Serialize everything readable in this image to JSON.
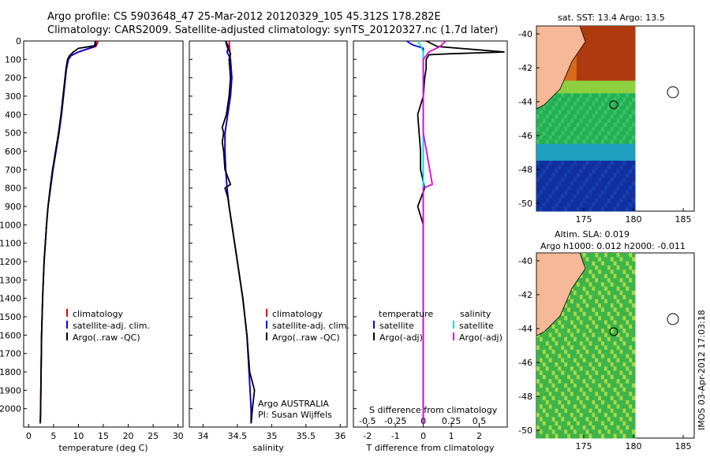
{
  "header": {
    "line1": "Argo profile: CS 5903648_47 25-Mar-2012 20120329_105 45.312S 178.282E",
    "line2": "Climatology: CARS2009. Satellite-adjusted climatology: synTS_20120327.nc (1.7d later)"
  },
  "colors": {
    "climatology": "#e00000",
    "satellite": "#0000e0",
    "argo": "#000000",
    "sat_sal": "#00e0e0",
    "argo_sal": "#e000e0"
  },
  "depth_ticks": [
    "0",
    "100",
    "200",
    "300",
    "400",
    "500",
    "600",
    "700",
    "800",
    "900",
    "1000",
    "1100",
    "1200",
    "1300",
    "1400",
    "1500",
    "1600",
    "1700",
    "1800",
    "1900",
    "2000"
  ],
  "legend_left": [
    "climatology",
    "satellite-adj. clim.",
    "Argo(..raw -QC)"
  ],
  "legend_diff": {
    "temp_title": "temperature",
    "sal_title": "salinity",
    "temp_items": [
      "satellite",
      "Argo(-adj)"
    ],
    "sal_items": [
      "satellite",
      "Argo(-adj)"
    ]
  },
  "panel_text": {
    "credit1": "Argo AUSTRALIA",
    "credit2": "PI: Susan Wijffels",
    "s_diff_label": "S difference from climatology"
  },
  "maps": {
    "sst_title": "sat. SST: 13.4 Argo: 13.5",
    "sla_title1": "Altim. SLA: 0.019",
    "sla_title2": "Argo h1000: 0.012 h2000: -0.011",
    "lat_ticks": [
      "-40",
      "-42",
      "-44",
      "-46",
      "-48",
      "-50"
    ],
    "lon_ticks": [
      "175",
      "180",
      "185"
    ]
  },
  "footer": "IMOS 03-Apr-2012 17:03:18",
  "chart_data": [
    {
      "type": "line",
      "title": "",
      "xlabel": "temperature (deg C)",
      "ylabel": "",
      "xlim": [
        -1,
        31
      ],
      "ylim": [
        2100,
        0
      ],
      "xticks": [
        "0",
        "5",
        "10",
        "15",
        "20",
        "25",
        "30"
      ],
      "series": [
        {
          "name": "climatology",
          "depth": [
            0,
            30,
            60,
            80,
            100,
            150,
            200,
            300,
            400,
            500,
            600,
            700,
            800,
            900,
            1000,
            1200,
            1400,
            1600,
            1800,
            2000,
            2080
          ],
          "values": [
            14,
            13.5,
            10,
            8.5,
            8,
            7.6,
            7.4,
            7.0,
            6.6,
            6.1,
            5.5,
            4.9,
            4.4,
            3.9,
            3.6,
            3.1,
            2.8,
            2.6,
            2.5,
            2.4,
            2.35
          ]
        },
        {
          "name": "satellite-adj. clim.",
          "depth": [
            0,
            30,
            60,
            80,
            100,
            150,
            200,
            300,
            400,
            500,
            600,
            700,
            800,
            900,
            1000,
            1200,
            1400,
            1600,
            1800,
            2000,
            2080
          ],
          "values": [
            13.4,
            13.2,
            10,
            8.5,
            8,
            7.6,
            7.4,
            7.0,
            6.6,
            6.1,
            5.5,
            4.9,
            4.4,
            3.9,
            3.6,
            3.1,
            2.8,
            2.6,
            2.5,
            2.4,
            2.35
          ]
        },
        {
          "name": "Argo(..raw -QC)",
          "depth": [
            0,
            25,
            40,
            60,
            80,
            100,
            150,
            200,
            300,
            400,
            500,
            600,
            700,
            800,
            900,
            1000,
            1200,
            1400,
            1600,
            1800,
            2000,
            2080
          ],
          "values": [
            13.5,
            13.5,
            10,
            9,
            8.2,
            7.8,
            7.5,
            7.3,
            6.9,
            6.5,
            6.0,
            5.4,
            4.8,
            4.3,
            3.9,
            3.6,
            3.1,
            2.8,
            2.6,
            2.5,
            2.4,
            2.35
          ]
        }
      ]
    },
    {
      "type": "line",
      "title": "",
      "xlabel": "salinity",
      "ylabel": "",
      "xlim": [
        33.8,
        36.1
      ],
      "ylim": [
        2100,
        0
      ],
      "xticks": [
        "34",
        "34.5",
        "35",
        "35.5",
        "36"
      ],
      "series": [
        {
          "name": "climatology",
          "depth": [
            0,
            100,
            200,
            300,
            400,
            500,
            600,
            700,
            800,
            900,
            1000,
            1200,
            1400,
            1600,
            1800,
            2000,
            2080
          ],
          "values": [
            34.38,
            34.4,
            34.42,
            34.4,
            34.36,
            34.32,
            34.32,
            34.33,
            34.35,
            34.38,
            34.42,
            34.5,
            34.58,
            34.64,
            34.67,
            34.7,
            34.7
          ]
        },
        {
          "name": "satellite-adj. clim.",
          "depth": [
            0,
            30,
            60,
            100,
            200,
            300,
            400,
            500,
            600,
            700,
            800,
            900,
            1000,
            1200,
            1400,
            1600,
            1800,
            2000,
            2080
          ],
          "values": [
            34.33,
            34.37,
            34.35,
            34.4,
            34.42,
            34.4,
            34.36,
            34.32,
            34.32,
            34.33,
            34.35,
            34.38,
            34.42,
            34.5,
            34.58,
            34.64,
            34.67,
            34.7,
            34.7
          ]
        },
        {
          "name": "Argo(..raw -QC)",
          "depth": [
            0,
            30,
            70,
            100,
            200,
            300,
            400,
            470,
            500,
            550,
            600,
            700,
            780,
            800,
            850,
            900,
            1000,
            1200,
            1400,
            1600,
            1800,
            1900,
            2000,
            2080
          ],
          "values": [
            34.33,
            34.35,
            34.4,
            34.38,
            34.4,
            34.38,
            34.34,
            34.28,
            34.3,
            34.28,
            34.3,
            34.32,
            34.4,
            34.32,
            34.36,
            34.38,
            34.42,
            34.5,
            34.58,
            34.64,
            34.68,
            34.75,
            34.72,
            34.7
          ]
        }
      ]
    },
    {
      "type": "line",
      "title": "",
      "xlabel": "T difference from climatology",
      "ylabel": "",
      "xlim": [
        -2.5,
        3
      ],
      "ylim": [
        2100,
        0
      ],
      "xticks": [
        "-2",
        "-1",
        "0",
        "1",
        "2"
      ],
      "s_xticks": [
        "-0.5",
        "-0.25",
        "0",
        "0.25",
        "0.5"
      ],
      "series": [
        {
          "name": "T satellite",
          "depth": [
            0,
            20,
            40,
            60,
            100,
            400,
            800,
            2080
          ],
          "values": [
            -0.6,
            -0.4,
            0,
            0,
            0,
            0,
            0,
            0
          ]
        },
        {
          "name": "T Argo(-adj)",
          "depth": [
            0,
            30,
            60,
            70,
            75,
            100,
            150,
            200,
            300,
            400,
            500,
            600,
            700,
            800,
            900,
            1000,
            1200,
            1500,
            2000,
            2080
          ],
          "values": [
            0.1,
            0.5,
            2.9,
            0.9,
            0.2,
            0.1,
            0.1,
            0.05,
            0,
            -0.2,
            -0.15,
            -0.1,
            -0.1,
            0.05,
            -0.2,
            0,
            0,
            0,
            0,
            0
          ]
        },
        {
          "name": "S satellite",
          "depth": [
            0,
            30,
            60,
            100,
            500,
            1000,
            2080
          ],
          "values": [
            -0.05,
            -0.02,
            0,
            0,
            0,
            0,
            0
          ]
        },
        {
          "name": "S Argo(-adj)",
          "depth": [
            0,
            30,
            60,
            100,
            200,
            500,
            780,
            800,
            850,
            1000,
            1500,
            2080
          ],
          "values": [
            0.2,
            0.15,
            0.05,
            0,
            0,
            0,
            0.08,
            0,
            0,
            0,
            0,
            0
          ]
        }
      ]
    }
  ]
}
